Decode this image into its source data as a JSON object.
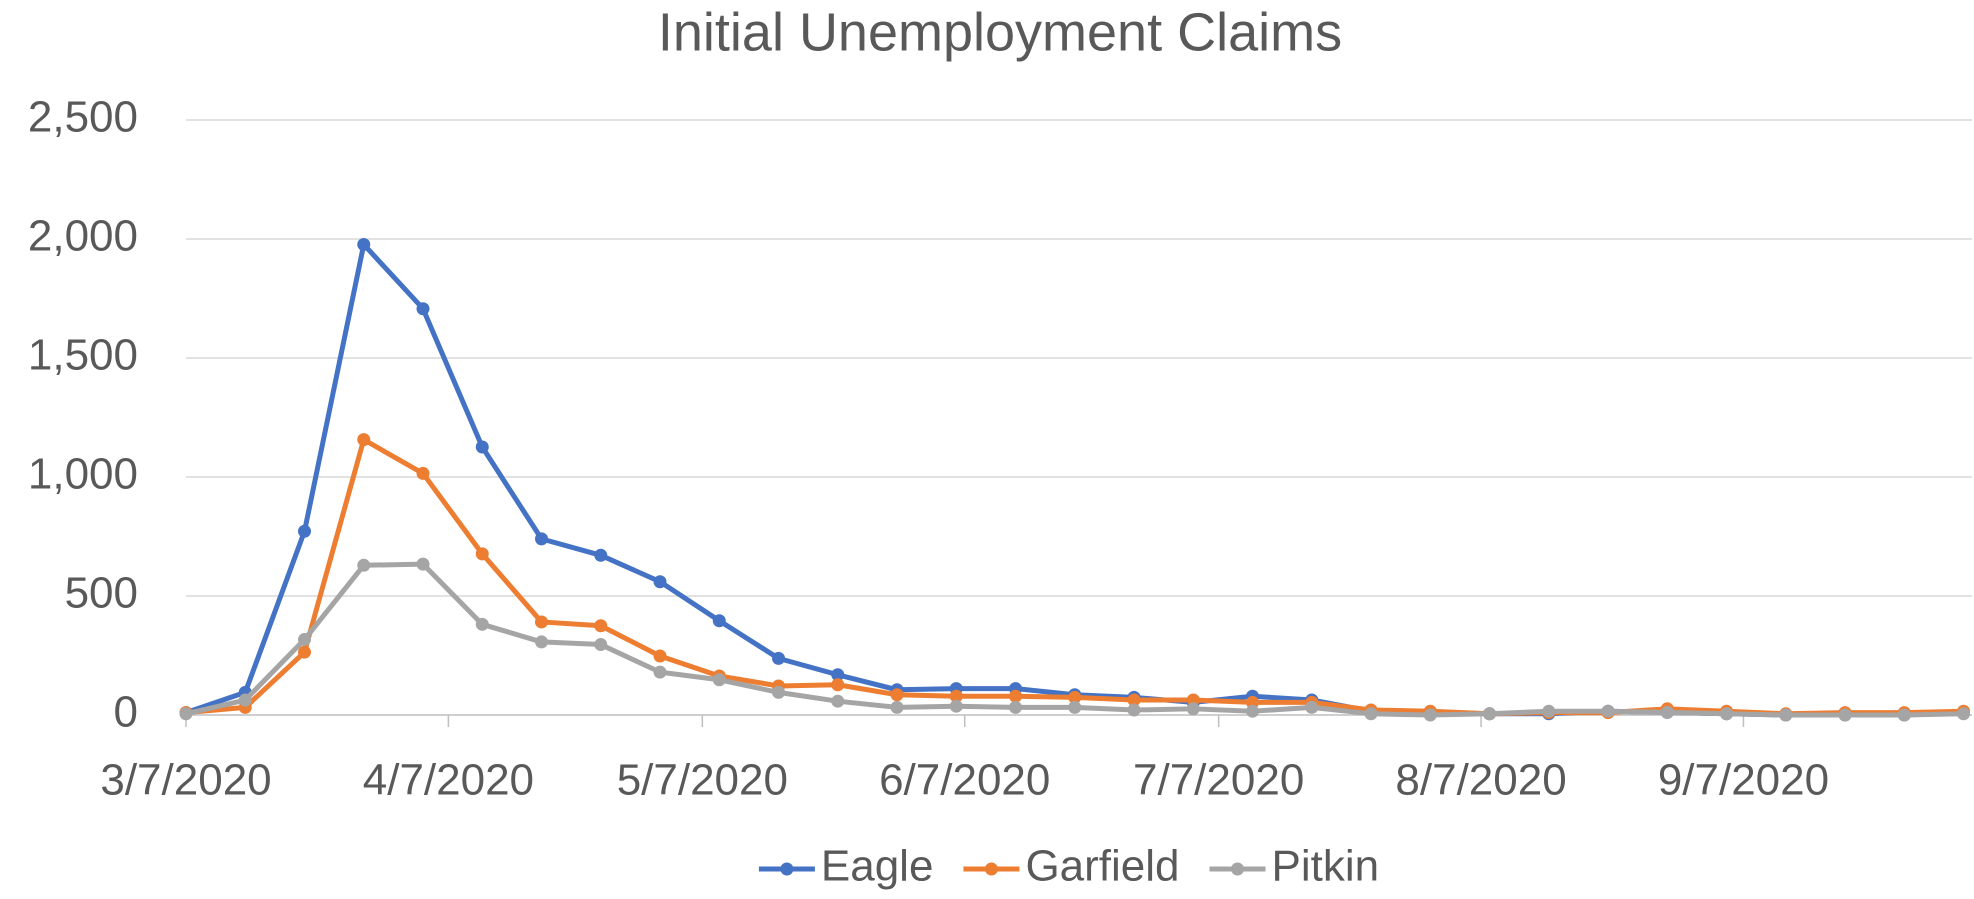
{
  "chart_data": {
    "type": "line",
    "title": "Initial Unemployment Claims",
    "x": [
      "3/7/2020",
      "3/14/2020",
      "3/21/2020",
      "3/28/2020",
      "4/4/2020",
      "4/11/2020",
      "4/18/2020",
      "4/25/2020",
      "5/2/2020",
      "5/9/2020",
      "5/16/2020",
      "5/23/2020",
      "5/30/2020",
      "6/6/2020",
      "6/13/2020",
      "6/20/2020",
      "6/27/2020",
      "7/4/2020",
      "7/11/2020",
      "7/18/2020",
      "7/25/2020",
      "8/1/2020",
      "8/8/2020",
      "8/15/2020",
      "8/22/2020",
      "8/29/2020",
      "9/5/2020",
      "9/12/2020",
      "9/19/2020",
      "9/26/2020",
      "10/3/2020"
    ],
    "series": [
      {
        "name": "Eagle",
        "color": "#4472c4",
        "values": [
          10,
          95,
          772,
          1977,
          1707,
          1126,
          740,
          671,
          560,
          396,
          238,
          169,
          106,
          111,
          111,
          85,
          74,
          53,
          79,
          63,
          16,
          11,
          5,
          5,
          16,
          11,
          5,
          0,
          0,
          0,
          10
        ]
      },
      {
        "name": "Garfield",
        "color": "#ed7d31",
        "values": [
          10,
          32,
          264,
          1157,
          1015,
          677,
          391,
          375,
          248,
          164,
          122,
          127,
          85,
          79,
          79,
          74,
          63,
          63,
          53,
          53,
          21,
          16,
          5,
          10,
          10,
          26,
          16,
          5,
          10,
          10,
          16
        ]
      },
      {
        "name": "Pitkin",
        "color": "#a5a5a5",
        "values": [
          5,
          63,
          317,
          629,
          634,
          381,
          307,
          296,
          180,
          148,
          95,
          58,
          32,
          37,
          32,
          32,
          21,
          26,
          16,
          32,
          5,
          0,
          5,
          16,
          16,
          11,
          5,
          0,
          0,
          0,
          5
        ]
      }
    ],
    "xlim": [
      "3/7/2020",
      "10/4/2020"
    ],
    "xticks": [
      "3/7/2020",
      "4/7/2020",
      "5/7/2020",
      "6/7/2020",
      "7/7/2020",
      "8/7/2020",
      "9/7/2020"
    ],
    "ylim": [
      0,
      2500
    ],
    "yticks": [
      0,
      500,
      {
        "value": 1000,
        "label": "1,000"
      },
      {
        "value": 1500,
        "label": "1,500"
      },
      {
        "value": 2000,
        "label": "2,000"
      },
      {
        "value": 2500,
        "label": "2,500"
      }
    ],
    "grid": true,
    "legend": "bottom"
  }
}
